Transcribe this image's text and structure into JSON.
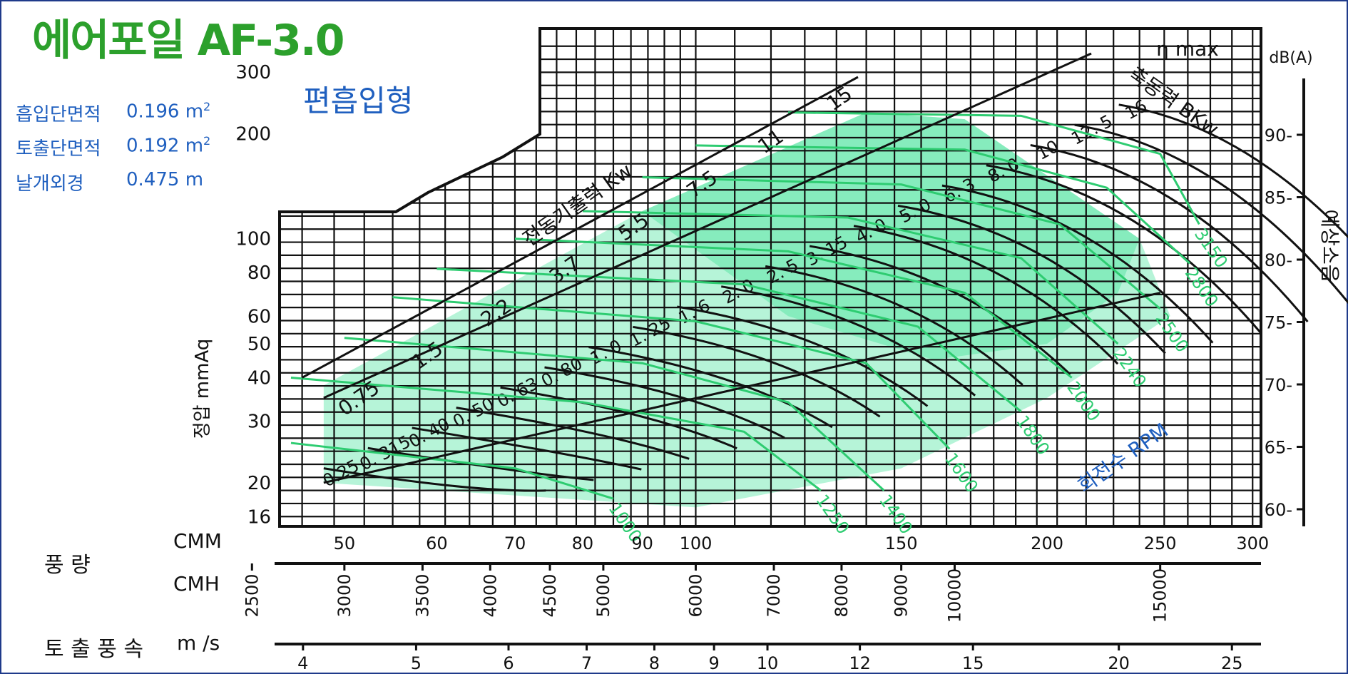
{
  "header": {
    "title": "에어포일 AF-3.0",
    "subtitle": "편흡입형"
  },
  "specs": [
    {
      "label": "흡입단면적",
      "value": "0.196 m",
      "sup": "2"
    },
    {
      "label": "토출단면적",
      "value": "0.192 m",
      "sup": "2"
    },
    {
      "label": "날개외경",
      "value": "0.475 m",
      "sup": ""
    }
  ],
  "axes": {
    "airflow_label": "풍 량",
    "cmm_unit": "CMM",
    "cmh_unit": "CMH",
    "velocity_label": "토 출 풍 속",
    "velocity_unit": "m /s",
    "pressure_label": "정압 mmAq",
    "noise_label": "예상소음",
    "noise_unit": "dB(A)",
    "motor_label": "전동기출력 Kw",
    "bkw_label": "축동력 BKw",
    "rpm_label": "회전수 RPM",
    "eta_label": "η max"
  },
  "colors": {
    "grid": "#111111",
    "rpm_curve": "#2ecc71",
    "shade": "#5ee6a8",
    "title": "#2ca02c",
    "blue_text": "#1f5fbf"
  },
  "chart_data": {
    "type": "line",
    "x_scale": "log",
    "y_scale": "log",
    "x_ticks_cmm": [
      50,
      60,
      70,
      80,
      90,
      100,
      150,
      200,
      250,
      300
    ],
    "x_ticks_cmh": [
      2500,
      3000,
      3500,
      4000,
      4500,
      5000,
      6000,
      7000,
      8000,
      9000,
      10000,
      15000
    ],
    "x_ticks_velocity": [
      4,
      5,
      6,
      7,
      8,
      9,
      10,
      12,
      15,
      20,
      25
    ],
    "y_ticks_pressure": [
      16,
      20,
      30,
      40,
      50,
      60,
      80,
      100,
      200,
      300
    ],
    "noise_ticks_dba": [
      60,
      65,
      70,
      75,
      80,
      85,
      90
    ],
    "motor_ratings_kw": [
      "0.75",
      "1.5",
      "2.2",
      "3.7",
      "5.5",
      "7.5",
      "11",
      "15"
    ],
    "power_labels_bkw": [
      "0.25",
      "0. 315",
      "0. 40",
      "0. 50",
      "0. 63",
      "0. 80",
      "1. 0",
      "1. 25",
      "1. 6",
      "2. 0",
      "2. 5",
      "3. 15",
      "4. 0",
      "5. 0",
      "6. 3",
      "8. 0",
      "10",
      "12. 5",
      "16"
    ],
    "rpm_labels": [
      "1000",
      "1250",
      "1400",
      "1600",
      "1800",
      "2000",
      "2240",
      "2500",
      "2800",
      "3150"
    ],
    "series": [
      {
        "name": "1000",
        "points": [
          [
            45,
            26
          ],
          [
            70,
            22
          ],
          [
            85,
            18
          ]
        ]
      },
      {
        "name": "1250",
        "points": [
          [
            45,
            40
          ],
          [
            80,
            34
          ],
          [
            110,
            28
          ],
          [
            128,
            19
          ]
        ]
      },
      {
        "name": "1400",
        "points": [
          [
            50,
            52
          ],
          [
            90,
            44
          ],
          [
            120,
            34
          ],
          [
            145,
            19
          ]
        ]
      },
      {
        "name": "1600",
        "points": [
          [
            55,
            68
          ],
          [
            100,
            58
          ],
          [
            140,
            44
          ],
          [
            165,
            25
          ]
        ]
      },
      {
        "name": "1800",
        "points": [
          [
            60,
            82
          ],
          [
            110,
            74
          ],
          [
            155,
            56
          ],
          [
            190,
            32
          ]
        ]
      },
      {
        "name": "2000",
        "points": [
          [
            70,
            100
          ],
          [
            120,
            92
          ],
          [
            170,
            70
          ],
          [
            210,
            40
          ]
        ]
      },
      {
        "name": "2240",
        "points": [
          [
            80,
            120
          ],
          [
            135,
            115
          ],
          [
            190,
            88
          ],
          [
            230,
            50
          ]
        ]
      },
      {
        "name": "2500",
        "points": [
          [
            90,
            150
          ],
          [
            150,
            143
          ],
          [
            205,
            110
          ],
          [
            250,
            63
          ]
        ]
      },
      {
        "name": "2800",
        "points": [
          [
            100,
            185
          ],
          [
            170,
            180
          ],
          [
            225,
            140
          ],
          [
            265,
            85
          ]
        ]
      },
      {
        "name": "3150",
        "points": [
          [
            120,
            230
          ],
          [
            190,
            225
          ],
          [
            250,
            175
          ],
          [
            270,
            110
          ]
        ]
      }
    ]
  }
}
